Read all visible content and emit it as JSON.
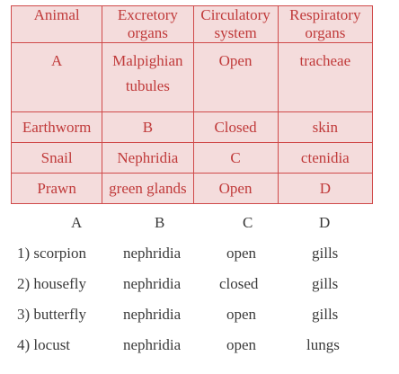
{
  "table": {
    "headers": [
      [
        "Animal"
      ],
      [
        "Excretory",
        "organs"
      ],
      [
        "Circulatory",
        "system"
      ],
      [
        "Respiratory",
        "organs"
      ]
    ],
    "rows": [
      [
        [
          "A"
        ],
        [
          "Malpighian",
          "tubules"
        ],
        [
          "Open"
        ],
        [
          "tracheae"
        ]
      ],
      [
        [
          "Earthworm"
        ],
        [
          "B"
        ],
        [
          "Closed"
        ],
        [
          "skin"
        ]
      ],
      [
        [
          "Snail"
        ],
        [
          "Nephridia"
        ],
        [
          "C"
        ],
        [
          "ctenidia"
        ]
      ],
      [
        [
          "Prawn"
        ],
        [
          "green glands"
        ],
        [
          "Open"
        ],
        [
          "D"
        ]
      ]
    ]
  },
  "options": {
    "headers": [
      "A",
      "B",
      "C",
      "D"
    ],
    "rows": [
      {
        "num": "1)",
        "a": "scorpion",
        "b": "nephridia",
        "c": "open",
        "d": "gills"
      },
      {
        "num": "2)",
        "a": "housefly",
        "b": "nephridia",
        "c": "closed",
        "d": "gills"
      },
      {
        "num": "3)",
        "a": "butterfly",
        "b": "nephridia",
        "c": "open",
        "d": "gills"
      },
      {
        "num": "4)",
        "a": "locust",
        "b": "nephridia",
        "c": "open",
        "d": "lungs"
      }
    ]
  },
  "colors": {
    "table_border": "#d04a4a",
    "table_fill": "#f4dcdc",
    "table_text": "#c03a3a",
    "option_text": "#3a3a3a"
  }
}
